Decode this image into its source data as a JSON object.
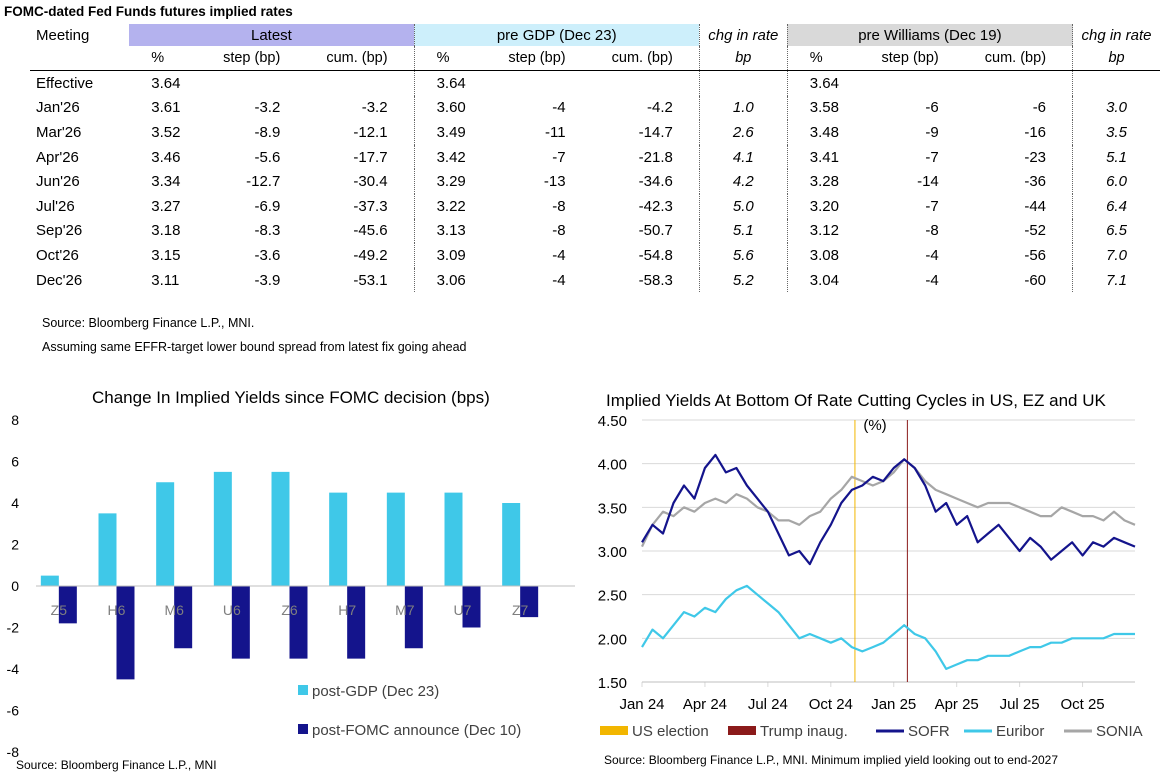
{
  "table": {
    "title": "FOMC-dated Fed Funds futures implied rates",
    "meeting_label": "Meeting",
    "groups": {
      "latest": "Latest",
      "gdp": "pre GDP (Dec 23)",
      "chg": "chg in rate",
      "will": "pre Williams (Dec 19)",
      "chg2": "chg in rate"
    },
    "subheaders": {
      "pct": "%",
      "step": "step (bp)",
      "cum": "cum. (bp)",
      "bp": "bp"
    },
    "rows": [
      {
        "meeting": "Effective",
        "l_rate": "3.64",
        "l_step": "",
        "l_cum": "",
        "g_rate": "3.64",
        "g_step": "",
        "g_cum": "",
        "chg1": "",
        "w_rate": "3.64",
        "w_step": "",
        "w_cum": "",
        "chg2": ""
      },
      {
        "meeting": "Jan'26",
        "l_rate": "3.61",
        "l_step": "-3.2",
        "l_cum": "-3.2",
        "g_rate": "3.60",
        "g_step": "-4",
        "g_cum": "-4.2",
        "chg1": "1.0",
        "w_rate": "3.58",
        "w_step": "-6",
        "w_cum": "-6",
        "chg2": "3.0"
      },
      {
        "meeting": "Mar'26",
        "l_rate": "3.52",
        "l_step": "-8.9",
        "l_cum": "-12.1",
        "g_rate": "3.49",
        "g_step": "-11",
        "g_cum": "-14.7",
        "chg1": "2.6",
        "w_rate": "3.48",
        "w_step": "-9",
        "w_cum": "-16",
        "chg2": "3.5"
      },
      {
        "meeting": "Apr'26",
        "l_rate": "3.46",
        "l_step": "-5.6",
        "l_cum": "-17.7",
        "g_rate": "3.42",
        "g_step": "-7",
        "g_cum": "-21.8",
        "chg1": "4.1",
        "w_rate": "3.41",
        "w_step": "-7",
        "w_cum": "-23",
        "chg2": "5.1"
      },
      {
        "meeting": "Jun'26",
        "l_rate": "3.34",
        "l_step": "-12.7",
        "l_cum": "-30.4",
        "g_rate": "3.29",
        "g_step": "-13",
        "g_cum": "-34.6",
        "chg1": "4.2",
        "w_rate": "3.28",
        "w_step": "-14",
        "w_cum": "-36",
        "chg2": "6.0"
      },
      {
        "meeting": "Jul'26",
        "l_rate": "3.27",
        "l_step": "-6.9",
        "l_cum": "-37.3",
        "g_rate": "3.22",
        "g_step": "-8",
        "g_cum": "-42.3",
        "chg1": "5.0",
        "w_rate": "3.20",
        "w_step": "-7",
        "w_cum": "-44",
        "chg2": "6.4"
      },
      {
        "meeting": "Sep'26",
        "l_rate": "3.18",
        "l_step": "-8.3",
        "l_cum": "-45.6",
        "g_rate": "3.13",
        "g_step": "-8",
        "g_cum": "-50.7",
        "chg1": "5.1",
        "w_rate": "3.12",
        "w_step": "-8",
        "w_cum": "-52",
        "chg2": "6.5"
      },
      {
        "meeting": "Oct'26",
        "l_rate": "3.15",
        "l_step": "-3.6",
        "l_cum": "-49.2",
        "g_rate": "3.09",
        "g_step": "-4",
        "g_cum": "-54.8",
        "chg1": "5.6",
        "w_rate": "3.08",
        "w_step": "-4",
        "w_cum": "-56",
        "chg2": "7.0"
      },
      {
        "meeting": "Dec'26",
        "l_rate": "3.11",
        "l_step": "-3.9",
        "l_cum": "-53.1",
        "g_rate": "3.06",
        "g_step": "-4",
        "g_cum": "-58.3",
        "chg1": "5.2",
        "w_rate": "3.04",
        "w_step": "-4",
        "w_cum": "-60",
        "chg2": "7.1"
      }
    ],
    "source": "Source: Bloomberg Finance L.P., MNI.",
    "note": "Assuming same  EFFR-target lower bound spread from latest fix going ahead"
  },
  "chart_data": [
    {
      "type": "bar",
      "title": "Change In Implied Yields since FOMC decision (bps)",
      "categories": [
        "Z5",
        "H6",
        "M6",
        "U6",
        "Z6",
        "H7",
        "M7",
        "U7",
        "Z7"
      ],
      "series": [
        {
          "name": "post-GDP (Dec 23)",
          "color": "#3fc8e8",
          "values": [
            0.5,
            3.5,
            5.0,
            5.5,
            5.5,
            4.5,
            4.5,
            4.5,
            4.0
          ]
        },
        {
          "name": "post-FOMC announce (Dec 10)",
          "color": "#14148c",
          "values": [
            -1.8,
            -4.5,
            -3.0,
            -3.5,
            -3.5,
            -3.5,
            -3.0,
            -2.0,
            -1.5
          ]
        }
      ],
      "ylim": [
        -8,
        8
      ],
      "yticks": [
        8,
        6,
        4,
        2,
        0,
        -2,
        -4,
        -6,
        -8
      ],
      "source": "Source: Bloomberg Finance L.P., MNI"
    },
    {
      "type": "line",
      "title": "Implied Yields At Bottom Of Rate Cutting Cycles in US, EZ and UK",
      "ylabel": "(%)",
      "ylim": [
        1.5,
        4.5
      ],
      "yticks": [
        "4.50",
        "4.00",
        "3.50",
        "3.00",
        "2.50",
        "2.00",
        "1.50"
      ],
      "xticks": [
        "Jan 24",
        "Apr 24",
        "Jul 24",
        "Oct 24",
        "Jan 25",
        "Apr 25",
        "Jul 25",
        "Oct 25"
      ],
      "xlim_months": [
        0,
        23.5
      ],
      "events": [
        {
          "name": "US election",
          "month": 10.15,
          "color": "#f2b600"
        },
        {
          "name": "Trump inaug.",
          "month": 12.65,
          "color": "#8b1a1a"
        }
      ],
      "series": [
        {
          "name": "SOFR",
          "color": "#14148c",
          "points": [
            [
              0,
              3.1
            ],
            [
              0.5,
              3.3
            ],
            [
              1,
              3.2
            ],
            [
              1.5,
              3.55
            ],
            [
              2,
              3.75
            ],
            [
              2.5,
              3.6
            ],
            [
              3,
              3.95
            ],
            [
              3.5,
              4.1
            ],
            [
              4,
              3.9
            ],
            [
              4.5,
              3.95
            ],
            [
              5,
              3.75
            ],
            [
              5.5,
              3.6
            ],
            [
              6,
              3.45
            ],
            [
              6.5,
              3.2
            ],
            [
              7,
              2.95
            ],
            [
              7.5,
              3.0
            ],
            [
              8,
              2.85
            ],
            [
              8.5,
              3.1
            ],
            [
              9,
              3.3
            ],
            [
              9.5,
              3.55
            ],
            [
              10,
              3.7
            ],
            [
              10.5,
              3.75
            ],
            [
              11,
              3.85
            ],
            [
              11.5,
              3.8
            ],
            [
              12,
              3.95
            ],
            [
              12.5,
              4.05
            ],
            [
              13,
              3.95
            ],
            [
              13.5,
              3.75
            ],
            [
              14,
              3.45
            ],
            [
              14.5,
              3.55
            ],
            [
              15,
              3.3
            ],
            [
              15.5,
              3.4
            ],
            [
              16,
              3.1
            ],
            [
              16.5,
              3.2
            ],
            [
              17,
              3.3
            ],
            [
              17.5,
              3.15
            ],
            [
              18,
              3.0
            ],
            [
              18.5,
              3.15
            ],
            [
              19,
              3.05
            ],
            [
              19.5,
              2.9
            ],
            [
              20,
              3.0
            ],
            [
              20.5,
              3.1
            ],
            [
              21,
              2.95
            ],
            [
              21.5,
              3.1
            ],
            [
              22,
              3.05
            ],
            [
              22.5,
              3.15
            ],
            [
              23,
              3.1
            ],
            [
              23.5,
              3.05
            ]
          ]
        },
        {
          "name": "Euribor",
          "color": "#3fc8e8",
          "points": [
            [
              0,
              1.9
            ],
            [
              0.5,
              2.1
            ],
            [
              1,
              2.0
            ],
            [
              1.5,
              2.15
            ],
            [
              2,
              2.3
            ],
            [
              2.5,
              2.25
            ],
            [
              3,
              2.35
            ],
            [
              3.5,
              2.3
            ],
            [
              4,
              2.45
            ],
            [
              4.5,
              2.55
            ],
            [
              5,
              2.6
            ],
            [
              5.5,
              2.5
            ],
            [
              6,
              2.4
            ],
            [
              6.5,
              2.3
            ],
            [
              7,
              2.15
            ],
            [
              7.5,
              2.0
            ],
            [
              8,
              2.05
            ],
            [
              8.5,
              2.0
            ],
            [
              9,
              1.95
            ],
            [
              9.5,
              2.0
            ],
            [
              10,
              1.9
            ],
            [
              10.5,
              1.85
            ],
            [
              11,
              1.9
            ],
            [
              11.5,
              1.95
            ],
            [
              12,
              2.05
            ],
            [
              12.5,
              2.15
            ],
            [
              13,
              2.05
            ],
            [
              13.5,
              2.0
            ],
            [
              14,
              1.85
            ],
            [
              14.5,
              1.65
            ],
            [
              15,
              1.7
            ],
            [
              15.5,
              1.75
            ],
            [
              16,
              1.75
            ],
            [
              16.5,
              1.8
            ],
            [
              17,
              1.8
            ],
            [
              17.5,
              1.8
            ],
            [
              18,
              1.85
            ],
            [
              18.5,
              1.9
            ],
            [
              19,
              1.9
            ],
            [
              19.5,
              1.95
            ],
            [
              20,
              1.95
            ],
            [
              20.5,
              2.0
            ],
            [
              21,
              2.0
            ],
            [
              21.5,
              2.0
            ],
            [
              22,
              2.0
            ],
            [
              22.5,
              2.05
            ],
            [
              23,
              2.05
            ],
            [
              23.5,
              2.05
            ]
          ]
        },
        {
          "name": "SONIA",
          "color": "#a6a6a6",
          "points": [
            [
              0,
              3.05
            ],
            [
              0.5,
              3.3
            ],
            [
              1,
              3.45
            ],
            [
              1.5,
              3.4
            ],
            [
              2,
              3.5
            ],
            [
              2.5,
              3.45
            ],
            [
              3,
              3.55
            ],
            [
              3.5,
              3.6
            ],
            [
              4,
              3.55
            ],
            [
              4.5,
              3.65
            ],
            [
              5,
              3.6
            ],
            [
              5.5,
              3.5
            ],
            [
              6,
              3.45
            ],
            [
              6.5,
              3.35
            ],
            [
              7,
              3.35
            ],
            [
              7.5,
              3.3
            ],
            [
              8,
              3.4
            ],
            [
              8.5,
              3.45
            ],
            [
              9,
              3.6
            ],
            [
              9.5,
              3.7
            ],
            [
              10,
              3.85
            ],
            [
              10.5,
              3.8
            ],
            [
              11,
              3.75
            ],
            [
              11.5,
              3.8
            ],
            [
              12,
              3.9
            ],
            [
              12.5,
              4.05
            ],
            [
              13,
              3.95
            ],
            [
              13.5,
              3.8
            ],
            [
              14,
              3.7
            ],
            [
              14.5,
              3.65
            ],
            [
              15,
              3.6
            ],
            [
              15.5,
              3.55
            ],
            [
              16,
              3.5
            ],
            [
              16.5,
              3.55
            ],
            [
              17,
              3.55
            ],
            [
              17.5,
              3.55
            ],
            [
              18,
              3.5
            ],
            [
              18.5,
              3.45
            ],
            [
              19,
              3.4
            ],
            [
              19.5,
              3.4
            ],
            [
              20,
              3.5
            ],
            [
              20.5,
              3.45
            ],
            [
              21,
              3.4
            ],
            [
              21.5,
              3.4
            ],
            [
              22,
              3.35
            ],
            [
              22.5,
              3.45
            ],
            [
              23,
              3.35
            ],
            [
              23.5,
              3.3
            ]
          ]
        }
      ],
      "source": "Source: Bloomberg Finance L.P., MNI. Minimum implied yield looking out to end-2027"
    }
  ]
}
